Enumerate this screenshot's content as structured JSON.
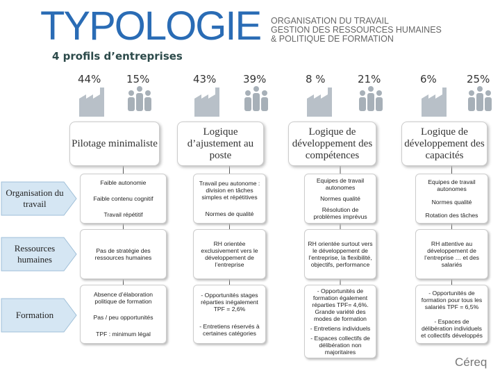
{
  "header": {
    "title": "TYPOLOGIE",
    "org_lines": [
      "ORGANISATION DU TRAVAIL",
      "GESTION DES RESSOURCES HUMAINES",
      "& POLITIQUE DE FORMATION"
    ],
    "subtitle": "4 profils d’entreprises"
  },
  "rows": [
    "Organisation du travail",
    "Ressources humaines",
    "Formation"
  ],
  "profiles": [
    {
      "shares": [
        "44%",
        "15%"
      ],
      "title": "Pilotage minimaliste",
      "cells": [
        [
          "Faible autonomie",
          "Faible contenu cognitif",
          "Travail répétitif"
        ],
        [
          "Pas de stratégie des ressources humaines"
        ],
        [
          "Absence d’élaboration politique de formation",
          "Pas / peu opportunités",
          "TPF : minimum légal"
        ]
      ]
    },
    {
      "shares": [
        "43%",
        "39%"
      ],
      "title": "Logique d’ajustement au poste",
      "cells": [
        [
          "Travail peu autonome : division en tâches simples et répétitives",
          "Normes de qualité"
        ],
        [
          "RH orientée exclusivement vers le développement de l’entreprise"
        ],
        [
          "- Opportunités stages réparties inégalement TPF = 2,6%",
          "- Entretiens réservés à certaines catégories"
        ]
      ]
    },
    {
      "shares": [
        "8 %",
        "21%"
      ],
      "title": "Logique de développement des compétences",
      "cells": [
        [
          "Equipes de travail autonomes",
          "Normes qualité",
          "Résolution de problèmes imprévus"
        ],
        [
          "RH orientée surtout vers le développement de l’entreprise, la flexibilité, objectifs, performance"
        ],
        [
          "- Opportunités de formation également réparties TPF= 4,6%. Grande variété des modes de formation",
          "- Entretiens individuels",
          "- Espaces collectifs de délibération non majoritaires"
        ]
      ]
    },
    {
      "shares": [
        "6%",
        "25%"
      ],
      "title": "Logique de développement des capacités",
      "cells": [
        [
          "Equipes de travail autonomes",
          "Normes qualité",
          "Rotation des tâches"
        ],
        [
          "RH attentive au développement de l’entreprise … et des salariés"
        ],
        [
          "- Opportunités de formation pour tous les salariés TPF = 6,5%",
          "- Espaces de délibération individuels et collectifs développés"
        ]
      ]
    }
  ],
  "logo": "Céreq"
}
